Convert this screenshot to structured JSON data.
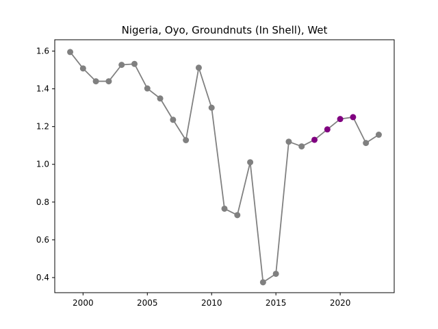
{
  "chart_data": {
    "type": "line",
    "title": "Nigeria, Oyo, Groundnuts (In Shell), Wet",
    "xlabel": "",
    "ylabel": "",
    "xlim": [
      1997.8,
      2024.2
    ],
    "ylim": [
      0.32,
      1.66
    ],
    "x_ticks": [
      2000,
      2005,
      2010,
      2015,
      2020
    ],
    "y_ticks": [
      0.4,
      0.6,
      0.8,
      1.0,
      1.2,
      1.4,
      1.6
    ],
    "x_tick_labels": [
      "2000",
      "2005",
      "2010",
      "2015",
      "2020"
    ],
    "y_tick_labels": [
      "0.4",
      "0.6",
      "0.8",
      "1.0",
      "1.2",
      "1.4",
      "1.6"
    ],
    "grid": false,
    "line_color": "#808080",
    "marker_color": "#808080",
    "highlight_color": "#800080",
    "highlight_x": [
      2018,
      2019,
      2020,
      2021
    ],
    "x": [
      1999,
      2000,
      2001,
      2002,
      2003,
      2004,
      2005,
      2006,
      2007,
      2008,
      2009,
      2010,
      2011,
      2012,
      2013,
      2014,
      2015,
      2016,
      2017,
      2018,
      2019,
      2020,
      2021,
      2022,
      2023
    ],
    "y": [
      1.595,
      1.508,
      1.44,
      1.44,
      1.527,
      1.532,
      1.402,
      1.349,
      1.236,
      1.128,
      1.512,
      1.3,
      0.765,
      0.731,
      1.011,
      0.375,
      0.42,
      1.12,
      1.095,
      1.13,
      1.185,
      1.24,
      1.25,
      1.113,
      1.157
    ]
  }
}
